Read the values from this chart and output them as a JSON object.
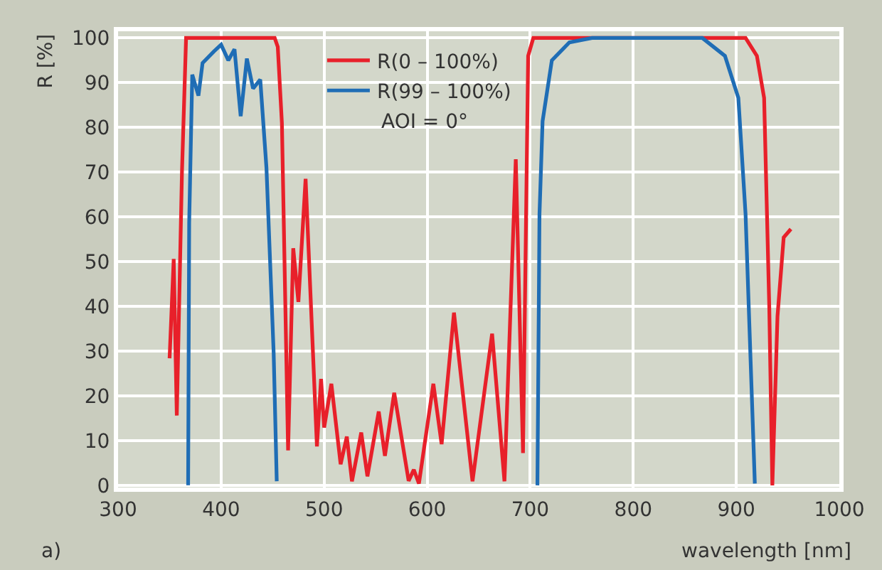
{
  "chart_data": {
    "type": "line",
    "xlabel": "wavelength [nm]",
    "ylabel": "R [%]",
    "xlim": [
      300,
      1000
    ],
    "xticks": [
      300,
      400,
      500,
      600,
      700,
      800,
      900,
      1000
    ],
    "ylim": [
      -0.5,
      101.5
    ],
    "yticks": [
      0,
      10,
      20,
      30,
      40,
      50,
      60,
      70,
      80,
      90,
      100
    ],
    "grid": true,
    "legend": "top",
    "line_style": "solid",
    "marker": "none",
    "annotations": [
      "AOI = 0°",
      "a)"
    ],
    "series": [
      {
        "name": "R(0 – 100%)",
        "color": "#e8202a",
        "x": [
          350,
          354,
          357,
          362,
          366,
          380,
          420,
          452,
          455,
          459,
          465,
          470,
          475,
          482,
          493,
          497,
          500,
          507,
          516,
          522,
          527,
          536,
          542,
          553,
          559,
          568,
          582,
          587,
          592,
          606,
          614,
          626,
          644,
          663,
          675,
          686,
          693,
          698,
          703,
          750,
          909,
          920,
          927,
          932,
          935,
          940,
          946,
          953
        ],
        "values": [
          28.4,
          50.6,
          15.6,
          70,
          100,
          100,
          100,
          100,
          98,
          81,
          7.8,
          53,
          41,
          68.5,
          8.7,
          23.8,
          12.9,
          22.7,
          4.7,
          10.9,
          0.9,
          11.8,
          2,
          16.5,
          6.6,
          20.7,
          1,
          3.5,
          0.4,
          22.7,
          9.2,
          38.6,
          0.9,
          33.9,
          0.9,
          72.9,
          7.2,
          96,
          100,
          100,
          100,
          96,
          86.6,
          40,
          0,
          37.8,
          55.4,
          57.3
        ]
      },
      {
        "name": "R(99 – 100%)",
        "color": "#1f6db5",
        "x": [
          368,
          369,
          372,
          378,
          382,
          393,
          400,
          407,
          413,
          419,
          425,
          431,
          438,
          444,
          451,
          454,
          580,
          707,
          709,
          712,
          721,
          738,
          760,
          820,
          867,
          889,
          902,
          909,
          918
        ],
        "values": [
          0,
          58.6,
          91.8,
          87.1,
          94.4,
          97,
          98.5,
          95,
          97.5,
          82.5,
          95.4,
          88.7,
          90.7,
          71,
          29.6,
          0.9,
          null,
          0,
          60.6,
          81.4,
          95,
          99,
          100,
          100,
          100,
          96,
          86.6,
          60.6,
          0.4
        ]
      }
    ]
  }
}
